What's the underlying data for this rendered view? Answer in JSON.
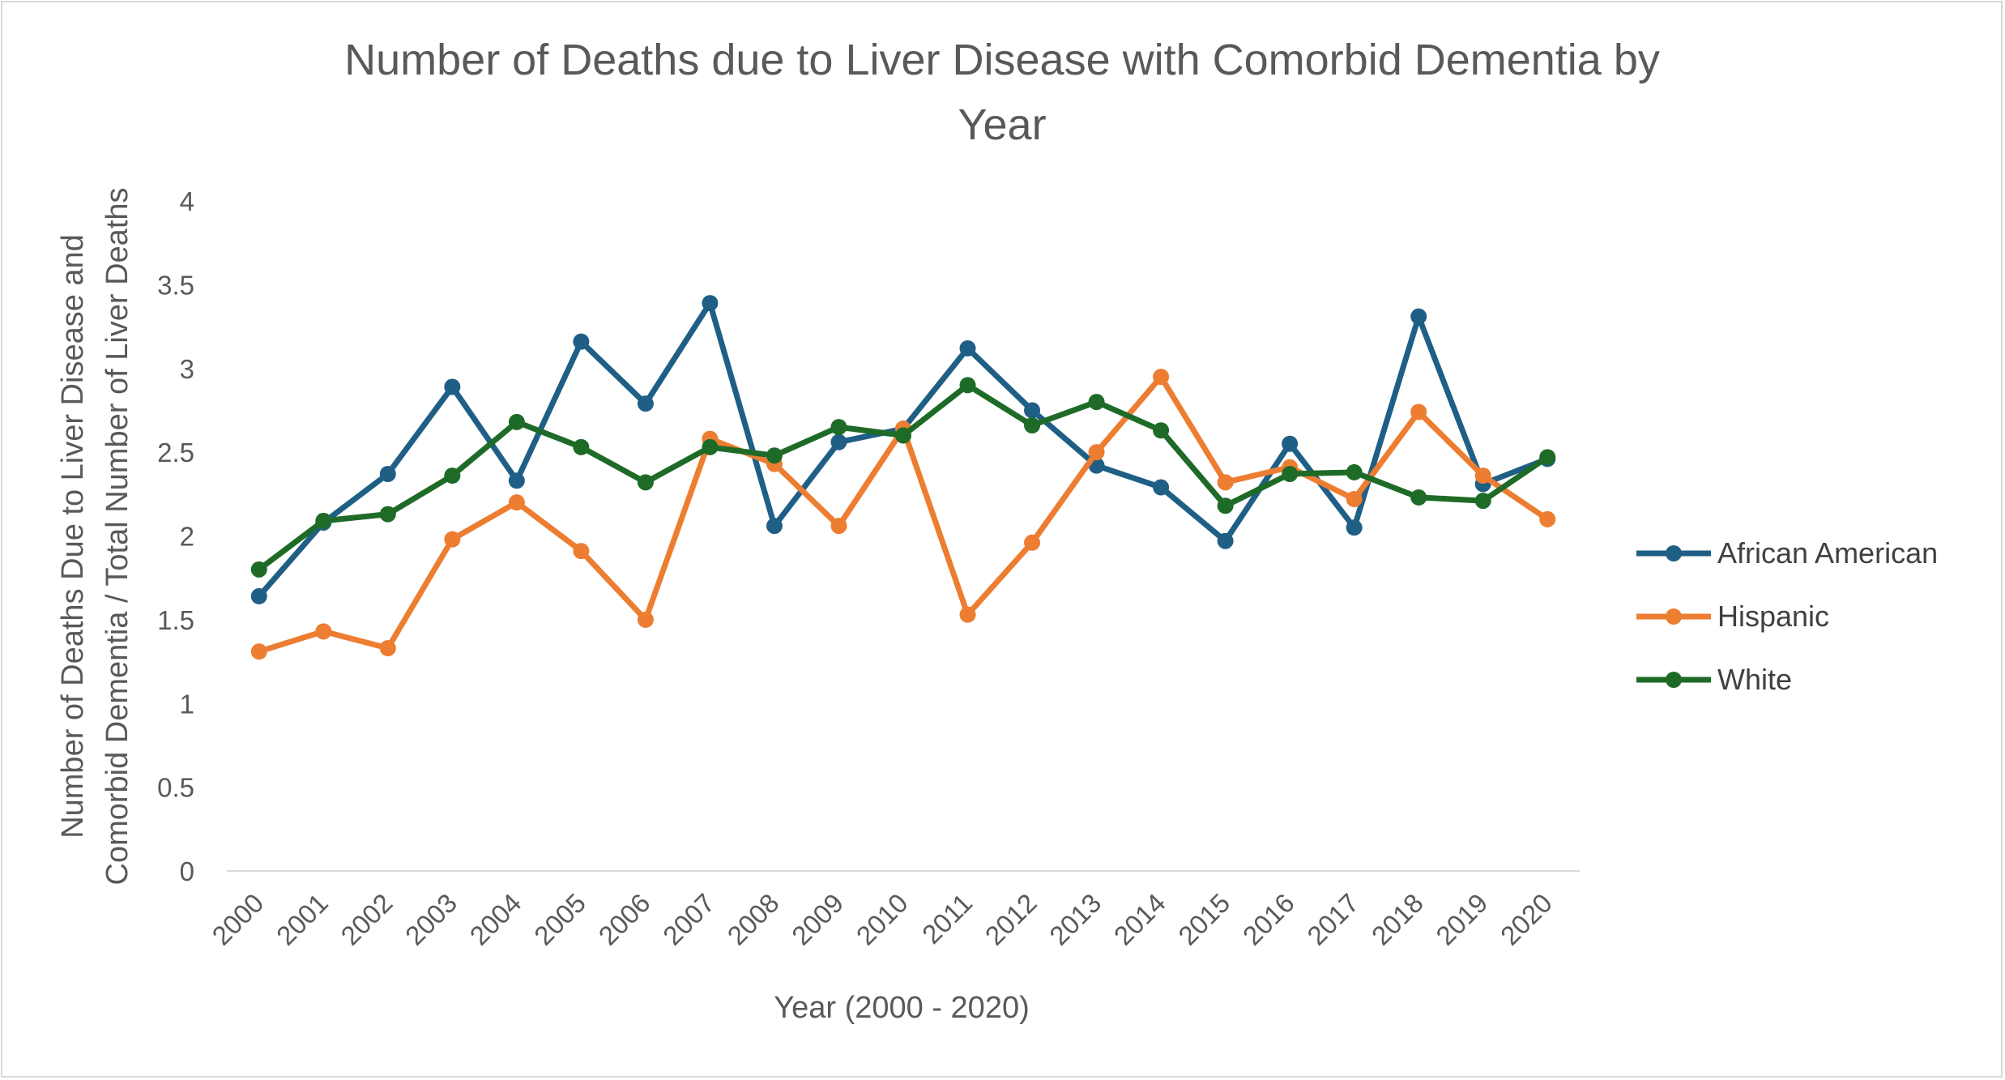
{
  "chart_data": {
    "type": "line",
    "title_lines": [
      "Number of Deaths due to Liver Disease with Comorbid Dementia by",
      "Year"
    ],
    "xlabel": "Year (2000 - 2020)",
    "ylabel_lines": [
      "Number of Deaths Due to Liver Disease and",
      "Comorbid Dementia / Total Number of Liver Deaths"
    ],
    "ylim": [
      0,
      4
    ],
    "yticks": [
      "0",
      "0.5",
      "1",
      "1.5",
      "2",
      "2.5",
      "3",
      "3.5",
      "4"
    ],
    "grid": false,
    "legend_position": "right",
    "categories": [
      "2000",
      "2001",
      "2002",
      "2003",
      "2004",
      "2005",
      "2006",
      "2007",
      "2008",
      "2009",
      "2010",
      "2011",
      "2012",
      "2013",
      "2014",
      "2015",
      "2016",
      "2017",
      "2018",
      "2019",
      "2020"
    ],
    "series": [
      {
        "name": "African American",
        "color": "#1f5f86",
        "values": [
          1.64,
          2.08,
          2.37,
          2.89,
          2.33,
          3.16,
          2.79,
          3.39,
          2.06,
          2.56,
          2.64,
          3.12,
          2.75,
          2.42,
          2.29,
          1.97,
          2.55,
          2.05,
          3.31,
          2.31,
          2.46
        ]
      },
      {
        "name": "Hispanic",
        "color": "#ed7d31",
        "values": [
          1.31,
          1.43,
          1.33,
          1.98,
          2.2,
          1.91,
          1.5,
          2.58,
          2.43,
          2.06,
          2.64,
          1.53,
          1.96,
          2.5,
          2.95,
          2.32,
          2.41,
          2.22,
          2.74,
          2.36,
          2.1
        ]
      },
      {
        "name": "White",
        "color": "#1e6b28",
        "values": [
          1.8,
          2.09,
          2.13,
          2.36,
          2.68,
          2.53,
          2.32,
          2.53,
          2.48,
          2.65,
          2.6,
          2.9,
          2.66,
          2.8,
          2.63,
          2.18,
          2.37,
          2.38,
          2.23,
          2.21,
          2.47
        ]
      }
    ]
  }
}
